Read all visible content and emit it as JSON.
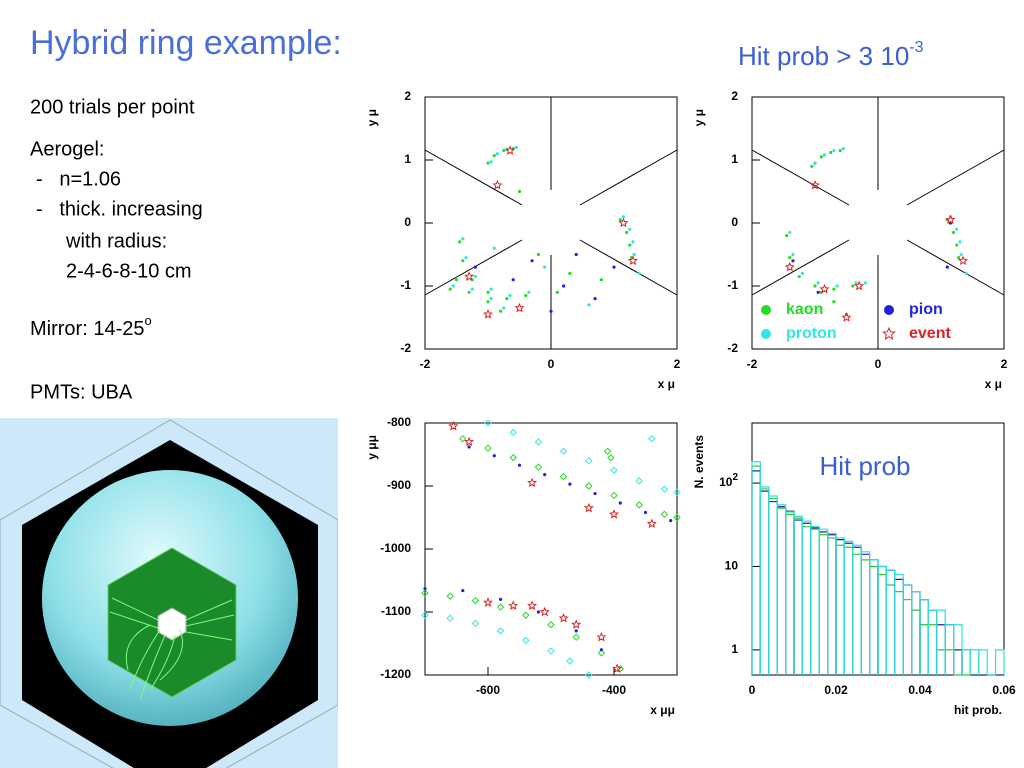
{
  "title": "Hybrid ring example:",
  "subtitle": {
    "text": "Hit prob > 3 10",
    "sup": "-3"
  },
  "notes": [
    "200 trials per point",
    "Aerogel:",
    "-   n=1.06",
    "-   thick. increasing",
    "with radius:",
    "2-4-6-8-10 cm"
  ],
  "mirror": {
    "text": "Mirror: 14-25",
    "sup": "o"
  },
  "pmts": "PMTs: UBA",
  "chart_data": [
    {
      "type": "scatter",
      "xlabel": "x μ",
      "ylabel": "y μ",
      "xlim": [
        -2,
        2
      ],
      "ylim": [
        -2,
        2
      ],
      "xticks": [
        -2,
        0,
        2
      ],
      "yticks": [
        2,
        1,
        0,
        -1,
        -2
      ],
      "series": [
        {
          "color": "#22dd22",
          "x": [
            -1.0,
            -0.9,
            -0.75,
            -0.6,
            1.1,
            1.2,
            1.25,
            1.28,
            -1.45,
            -1.4,
            -1.25,
            -1.0,
            -0.7,
            -0.4,
            -1.6,
            -1.3,
            -1.0,
            -0.8,
            -0.5,
            0.3,
            0.8,
            -0.2,
            0.1,
            -1.5
          ],
          "y": [
            0.95,
            1.07,
            1.15,
            1.18,
            0.05,
            -0.15,
            -0.35,
            -0.55,
            -0.3,
            -0.6,
            -0.9,
            -1.1,
            -1.2,
            -1.15,
            -1.05,
            -1.1,
            -1.25,
            -1.4,
            0.5,
            -0.8,
            -0.9,
            -0.5,
            -1.1,
            -0.9
          ]
        },
        {
          "color": "#33e5e5",
          "x": [
            -0.95,
            -0.85,
            -0.7,
            -0.55,
            1.15,
            1.25,
            1.3,
            1.32,
            -1.4,
            -1.35,
            -1.2,
            -0.95,
            -0.65,
            -0.35,
            -1.55,
            -1.25,
            -0.95,
            -0.75,
            -0.1,
            0.6,
            1.4,
            -0.9
          ],
          "y": [
            0.97,
            1.1,
            1.17,
            1.2,
            0.1,
            -0.1,
            -0.3,
            -0.5,
            -0.25,
            -0.55,
            -0.85,
            -1.05,
            -1.15,
            -1.1,
            -1.0,
            -1.05,
            -1.2,
            -1.35,
            -0.7,
            -1.3,
            -0.8,
            -0.4
          ]
        },
        {
          "color": "#2222dd",
          "x": [
            -0.6,
            0.2,
            0.7,
            -0.3,
            0.4,
            1.0,
            -1.2,
            0.0
          ],
          "y": [
            -0.9,
            -1.0,
            -1.2,
            -0.6,
            -0.5,
            -0.7,
            -0.7,
            -1.4
          ]
        },
        {
          "color": "#dd2222",
          "marker": "star",
          "x": [
            -0.65,
            -0.85,
            1.15,
            1.3,
            -1.0,
            -0.5,
            -1.3
          ],
          "y": [
            1.15,
            0.6,
            0.0,
            -0.6,
            -1.45,
            -1.35,
            -0.85
          ]
        }
      ]
    },
    {
      "type": "scatter",
      "xlabel": "x μ",
      "ylabel": "y μ",
      "xlim": [
        -2,
        2
      ],
      "ylim": [
        -2,
        2
      ],
      "xticks": [
        -2,
        0,
        2
      ],
      "yticks": [
        2,
        1,
        0,
        -1,
        -2
      ],
      "series": [
        {
          "name": "kaon",
          "color": "#22dd22",
          "x": [
            -1.05,
            -0.9,
            -0.75,
            -0.6,
            1.1,
            1.2,
            1.25,
            1.28,
            -1.45,
            -1.4,
            -1.25,
            -1.0,
            -0.7,
            -0.4,
            -0.9,
            -0.7,
            -0.5
          ],
          "y": [
            0.9,
            1.05,
            1.12,
            1.15,
            0.05,
            -0.15,
            -0.35,
            -0.55,
            -0.2,
            -0.55,
            -0.85,
            -1.0,
            -1.05,
            -1.0,
            -1.1,
            -1.25,
            -1.45
          ]
        },
        {
          "name": "pion",
          "color": "#2222dd",
          "x": [
            -1.0,
            -0.85,
            1.15,
            -1.35,
            -0.95,
            1.1
          ],
          "y": [
            0.95,
            1.08,
            0.0,
            -0.6,
            -1.1,
            -0.7
          ]
        },
        {
          "name": "proton",
          "color": "#33e5e5",
          "x": [
            -1.0,
            -0.85,
            -0.7,
            -0.55,
            1.15,
            1.25,
            1.3,
            1.32,
            -1.4,
            -1.35,
            -1.2,
            -0.95,
            -0.65,
            -0.35,
            1.4,
            -0.2
          ],
          "y": [
            0.95,
            1.08,
            1.15,
            1.18,
            0.1,
            -0.1,
            -0.3,
            -0.5,
            -0.15,
            -0.5,
            -0.8,
            -0.95,
            -1.0,
            -0.95,
            -0.8,
            -0.95
          ]
        },
        {
          "name": "event",
          "color": "#dd2222",
          "marker": "star",
          "x": [
            -1.0,
            1.15,
            1.35,
            -1.4,
            -0.85,
            -0.3,
            -0.5
          ],
          "y": [
            0.6,
            0.05,
            -0.6,
            -0.7,
            -1.05,
            -1.0,
            -1.5
          ]
        }
      ],
      "legend": "lower right"
    },
    {
      "type": "scatter",
      "xlabel": "x μμ",
      "ylabel": "y μμ",
      "xlim": [
        -700,
        -300
      ],
      "ylim": [
        -1200,
        -800
      ],
      "xticks": [
        -600,
        -400
      ],
      "yticks": [
        -800,
        -900,
        -1000,
        -1100,
        -1200
      ],
      "series": [
        {
          "color": "#22dd22",
          "marker": "diamond",
          "x": [
            -640,
            -600,
            -560,
            -520,
            -480,
            -440,
            -400,
            -360,
            -320,
            -300,
            -700,
            -660,
            -620,
            -580,
            -540,
            -500,
            -460,
            -420,
            -390,
            -410,
            -405
          ],
          "y": [
            -825,
            -840,
            -855,
            -870,
            -885,
            -900,
            -915,
            -930,
            -945,
            -950,
            -1070,
            -1075,
            -1082,
            -1092,
            -1105,
            -1120,
            -1140,
            -1165,
            -1190,
            -845,
            -855
          ]
        },
        {
          "color": "#33e5e5",
          "marker": "diamond",
          "x": [
            -600,
            -560,
            -520,
            -480,
            -440,
            -400,
            -360,
            -320,
            -300,
            -700,
            -660,
            -620,
            -580,
            -540,
            -500,
            -470,
            -440,
            -340
          ],
          "y": [
            -800,
            -815,
            -830,
            -845,
            -860,
            -875,
            -892,
            -905,
            -910,
            -1105,
            -1110,
            -1118,
            -1130,
            -1145,
            -1162,
            -1178,
            -1200,
            -825
          ]
        },
        {
          "color": "#2222dd",
          "marker": "dot",
          "x": [
            -630,
            -590,
            -550,
            -510,
            -470,
            -430,
            -390,
            -350,
            -310,
            -700,
            -640,
            -580,
            -520,
            -460,
            -420
          ],
          "y": [
            -838,
            -852,
            -867,
            -882,
            -897,
            -912,
            -927,
            -942,
            -955,
            -1063,
            -1066,
            -1080,
            -1100,
            -1130,
            -1160
          ]
        },
        {
          "color": "#dd2222",
          "marker": "star",
          "x": [
            -655,
            -630,
            -530,
            -440,
            -400,
            -340,
            -600,
            -560,
            -530,
            -510,
            -480,
            -460,
            -420,
            -395
          ],
          "y": [
            -805,
            -830,
            -895,
            -935,
            -945,
            -960,
            -1085,
            -1090,
            -1090,
            -1100,
            -1110,
            -1120,
            -1140,
            -1190
          ]
        }
      ]
    },
    {
      "type": "histogram",
      "xlabel": "hit prob.",
      "ylabel": "N. events",
      "annotation": "Hit prob",
      "log_y": true,
      "xlim": [
        0,
        0.06
      ],
      "ylim": [
        0.5,
        525
      ],
      "xticks": [
        0,
        0.02,
        0.04,
        0.06
      ],
      "yticks": [
        1,
        10,
        {
          "value": 100,
          "label": "10",
          "sup": "2"
        }
      ],
      "bins": [
        0,
        0.002,
        0.004,
        0.006,
        0.008,
        0.01,
        0.012,
        0.014,
        0.016,
        0.018,
        0.02,
        0.022,
        0.024,
        0.026,
        0.028,
        0.03,
        0.032,
        0.034,
        0.036,
        0.038,
        0.04,
        0.042,
        0.044,
        0.046,
        0.048,
        0.05,
        0.052,
        0.054,
        0.056,
        0.058,
        0.06
      ],
      "series": [
        {
          "color": "#22cc22",
          "values": [
            160,
            85,
            65,
            50,
            42,
            38,
            30,
            28,
            24,
            22,
            18,
            17,
            14,
            12,
            10,
            8,
            6,
            5,
            4,
            3,
            2,
            2,
            1,
            1,
            0,
            0,
            0,
            0,
            0,
            0
          ]
        },
        {
          "color": "#2222aa",
          "values": [
            140,
            80,
            60,
            52,
            46,
            36,
            33,
            29,
            26,
            24,
            21,
            19,
            17,
            14,
            12,
            10,
            9,
            7,
            6,
            5,
            4,
            3,
            2,
            2,
            1,
            1,
            0,
            0,
            0,
            0
          ]
        },
        {
          "color": "#33dddd",
          "values": [
            180,
            90,
            70,
            55,
            45,
            40,
            35,
            30,
            28,
            25,
            22,
            20,
            18,
            15,
            12,
            10,
            9,
            8,
            6,
            5,
            4,
            3,
            3,
            2,
            2,
            1,
            1,
            1,
            0,
            1
          ]
        }
      ]
    }
  ]
}
